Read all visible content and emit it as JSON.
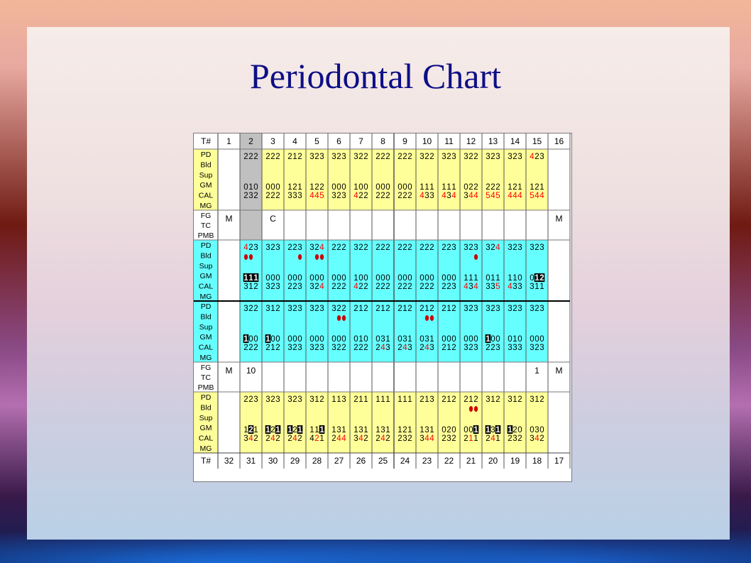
{
  "slide": {
    "title": "Periodontal Chart"
  },
  "chart": {
    "colors": {
      "yellow": "#ffff99",
      "cyan": "#66ffff",
      "white": "#ffffff",
      "grey": "#c0c0c0",
      "red": "#ff0000",
      "black": "#000000"
    },
    "header_label": "T#",
    "upper_teeth": [
      "1",
      "2",
      "3",
      "4",
      "5",
      "6",
      "7",
      "8",
      "9",
      "10",
      "11",
      "12",
      "13",
      "14",
      "15",
      "16"
    ],
    "lower_teeth": [
      "32",
      "31",
      "30",
      "29",
      "28",
      "27",
      "26",
      "25",
      "24",
      "23",
      "22",
      "21",
      "20",
      "19",
      "18",
      "17"
    ],
    "missing_upper_columns": [
      0,
      15
    ],
    "selected_column": 1,
    "labels": {
      "pd_group": [
        "PD",
        "Bld",
        "Sup",
        "GM",
        "CAL",
        "MG"
      ],
      "mid_group": [
        "FG",
        "TC",
        "PMB"
      ]
    },
    "upper_facial": {
      "pd": [
        "",
        "222",
        "222",
        "212",
        "323",
        "323",
        "322",
        "222",
        "222",
        "322",
        "323",
        "322",
        "323",
        "323",
        "423",
        ""
      ],
      "bld": [
        "",
        "",
        "",
        "",
        "",
        "",
        "",
        "",
        "",
        "",
        "",
        "",
        "",
        "",
        "",
        ""
      ],
      "gm": [
        "",
        "010",
        "000",
        "121",
        "122",
        "000",
        "100",
        "000",
        "000",
        "111",
        "111",
        "022",
        "222",
        "121",
        "121",
        ""
      ],
      "cal": [
        "",
        "232",
        "222",
        "333",
        "445",
        "323",
        "422",
        "222",
        "222",
        "433",
        "434",
        "344",
        "545",
        "444",
        "544",
        ""
      ]
    },
    "upper_mid": {
      "fg": [
        "M",
        "",
        "C",
        "",
        "",
        "",
        "",
        "",
        "",
        "",
        "",
        "",
        "",
        "",
        "",
        "M"
      ],
      "tc": [
        "",
        "",
        "",
        "",
        "",
        "",
        "",
        "",
        "",
        "",
        "",
        "",
        "",
        "",
        "",
        ""
      ]
    },
    "upper_lingual": {
      "pd": [
        "",
        "423",
        "323",
        "223",
        "324",
        "222",
        "322",
        "222",
        "222",
        "222",
        "223",
        "323",
        "324",
        "323",
        "323",
        ""
      ],
      "bld": [
        "",
        "110",
        "000",
        "001",
        "011",
        "000",
        "000",
        "000",
        "000",
        "000",
        "000",
        "001",
        "000",
        "000",
        "000",
        ""
      ],
      "gm": [
        "",
        "111",
        "000",
        "000",
        "000",
        "000",
        "100",
        "000",
        "000",
        "000",
        "000",
        "111",
        "011",
        "110",
        "012",
        ""
      ],
      "cal": [
        "",
        "312",
        "323",
        "223",
        "324",
        "222",
        "422",
        "222",
        "222",
        "222",
        "223",
        "434",
        "335",
        "433",
        "311",
        ""
      ]
    },
    "lower_lingual": {
      "pd": [
        "",
        "322",
        "312",
        "323",
        "323",
        "322",
        "212",
        "212",
        "212",
        "212",
        "212",
        "323",
        "323",
        "323",
        "323",
        ""
      ],
      "bld": [
        "",
        "000",
        "000",
        "000",
        "000",
        "011",
        "000",
        "000",
        "000",
        "011",
        "000",
        "000",
        "000",
        "000",
        "000",
        ""
      ],
      "gm": [
        "",
        "100",
        "100",
        "000",
        "000",
        "000",
        "010",
        "031",
        "031",
        "031",
        "000",
        "000",
        "100",
        "010",
        "000",
        ""
      ],
      "cal": [
        "",
        "222",
        "212",
        "323",
        "323",
        "322",
        "222",
        "243",
        "243",
        "243",
        "212",
        "323",
        "223",
        "333",
        "323",
        ""
      ]
    },
    "lower_mid": {
      "fg": [
        "M",
        "10",
        "",
        "",
        "",
        "",
        "",
        "",
        "",
        "",
        "",
        "",
        "",
        "",
        "1",
        "M"
      ],
      "tc": [
        "",
        "",
        "",
        "",
        "",
        "",
        "",
        "",
        "",
        "",
        "",
        "",
        "",
        "",
        "",
        ""
      ]
    },
    "lower_facial": {
      "pd": [
        "",
        "223",
        "323",
        "323",
        "312",
        "113",
        "211",
        "111",
        "111",
        "213",
        "212",
        "212",
        "312",
        "312",
        "312",
        ""
      ],
      "bld": [
        "",
        "000",
        "000",
        "000",
        "000",
        "000",
        "000",
        "000",
        "000",
        "000",
        "000",
        "011",
        "000",
        "000",
        "000",
        ""
      ],
      "gm": [
        "",
        "121",
        "121",
        "121",
        "111",
        "131",
        "131",
        "131",
        "121",
        "131",
        "020",
        "001",
        "131",
        "120",
        "030",
        ""
      ],
      "cal": [
        "",
        "342",
        "242",
        "242",
        "421",
        "244",
        "342",
        "242",
        "232",
        "344",
        "232",
        "211",
        "241",
        "232",
        "342",
        ""
      ]
    },
    "red_digits": [
      {
        "row": "uf_pd",
        "col": 14,
        "digit": 0
      },
      {
        "row": "uf_cal",
        "col": 4,
        "digit": 0
      },
      {
        "row": "uf_cal",
        "col": 4,
        "digit": 1
      },
      {
        "row": "uf_cal",
        "col": 4,
        "digit": 2
      },
      {
        "row": "uf_cal",
        "col": 6,
        "digit": 0
      },
      {
        "row": "uf_cal",
        "col": 9,
        "digit": 0
      },
      {
        "row": "uf_cal",
        "col": 10,
        "digit": 0
      },
      {
        "row": "uf_cal",
        "col": 10,
        "digit": 2
      },
      {
        "row": "uf_cal",
        "col": 11,
        "digit": 1
      },
      {
        "row": "uf_cal",
        "col": 11,
        "digit": 2
      },
      {
        "row": "uf_cal",
        "col": 12,
        "digit": 0
      },
      {
        "row": "uf_cal",
        "col": 12,
        "digit": 1
      },
      {
        "row": "uf_cal",
        "col": 12,
        "digit": 2
      },
      {
        "row": "uf_cal",
        "col": 13,
        "digit": 0
      },
      {
        "row": "uf_cal",
        "col": 13,
        "digit": 1
      },
      {
        "row": "uf_cal",
        "col": 13,
        "digit": 2
      },
      {
        "row": "uf_cal",
        "col": 14,
        "digit": 0
      },
      {
        "row": "uf_cal",
        "col": 14,
        "digit": 1
      },
      {
        "row": "uf_cal",
        "col": 14,
        "digit": 2
      },
      {
        "row": "ul_pd",
        "col": 1,
        "digit": 0
      },
      {
        "row": "ul_pd",
        "col": 4,
        "digit": 2
      },
      {
        "row": "ul_pd",
        "col": 12,
        "digit": 2
      },
      {
        "row": "ul_cal",
        "col": 4,
        "digit": 2
      },
      {
        "row": "ul_cal",
        "col": 6,
        "digit": 0
      },
      {
        "row": "ul_cal",
        "col": 11,
        "digit": 0
      },
      {
        "row": "ul_cal",
        "col": 11,
        "digit": 2
      },
      {
        "row": "ul_cal",
        "col": 12,
        "digit": 2
      },
      {
        "row": "ul_cal",
        "col": 13,
        "digit": 0
      },
      {
        "row": "ll_cal",
        "col": 7,
        "digit": 1
      },
      {
        "row": "ll_cal",
        "col": 8,
        "digit": 1
      },
      {
        "row": "ll_cal",
        "col": 9,
        "digit": 1
      },
      {
        "row": "lf_cal",
        "col": 1,
        "digit": 1
      },
      {
        "row": "lf_cal",
        "col": 2,
        "digit": 1
      },
      {
        "row": "lf_cal",
        "col": 3,
        "digit": 1
      },
      {
        "row": "lf_cal",
        "col": 4,
        "digit": 1
      },
      {
        "row": "lf_cal",
        "col": 5,
        "digit": 1
      },
      {
        "row": "lf_cal",
        "col": 5,
        "digit": 2
      },
      {
        "row": "lf_cal",
        "col": 6,
        "digit": 1
      },
      {
        "row": "lf_cal",
        "col": 7,
        "digit": 1
      },
      {
        "row": "lf_cal",
        "col": 9,
        "digit": 1
      },
      {
        "row": "lf_cal",
        "col": 9,
        "digit": 2
      },
      {
        "row": "lf_cal",
        "col": 11,
        "digit": 1
      },
      {
        "row": "lf_cal",
        "col": 12,
        "digit": 1
      },
      {
        "row": "lf_cal",
        "col": 14,
        "digit": 1
      }
    ],
    "black_box_digits": [
      {
        "row": "ul_gm",
        "col": 1,
        "digit": 0
      },
      {
        "row": "ul_gm",
        "col": 1,
        "digit": 1
      },
      {
        "row": "ul_gm",
        "col": 1,
        "digit": 2
      },
      {
        "row": "ul_gm",
        "col": 14,
        "digit": 1
      },
      {
        "row": "ul_gm",
        "col": 14,
        "digit": 2
      },
      {
        "row": "ll_gm",
        "col": 1,
        "digit": 0
      },
      {
        "row": "ll_gm",
        "col": 2,
        "digit": 0
      },
      {
        "row": "ll_gm",
        "col": 12,
        "digit": 0
      },
      {
        "row": "lf_gm",
        "col": 1,
        "digit": 1
      },
      {
        "row": "lf_gm",
        "col": 2,
        "digit": 0
      },
      {
        "row": "lf_gm",
        "col": 2,
        "digit": 2
      },
      {
        "row": "lf_gm",
        "col": 3,
        "digit": 0
      },
      {
        "row": "lf_gm",
        "col": 3,
        "digit": 2
      },
      {
        "row": "lf_gm",
        "col": 4,
        "digit": 2
      },
      {
        "row": "lf_gm",
        "col": 11,
        "digit": 2
      },
      {
        "row": "lf_gm",
        "col": 12,
        "digit": 0
      },
      {
        "row": "lf_gm",
        "col": 12,
        "digit": 2
      },
      {
        "row": "lf_gm",
        "col": 13,
        "digit": 0
      }
    ]
  }
}
